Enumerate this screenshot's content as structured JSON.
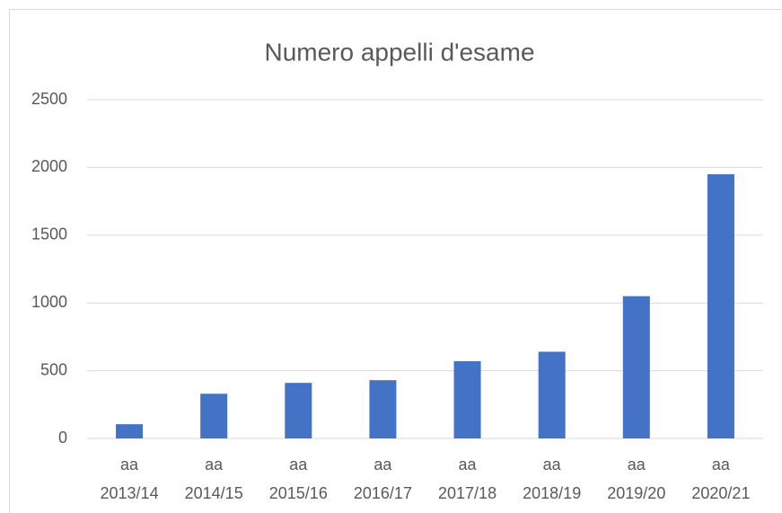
{
  "chart_data": {
    "type": "bar",
    "title": "Numero appelli d'esame",
    "categories": [
      "aa 2013/14",
      "aa 2014/15",
      "aa 2015/16",
      "aa 2016/17",
      "aa 2017/18",
      "aa 2018/19",
      "aa 2019/20",
      "aa 2020/21"
    ],
    "values": [
      105,
      330,
      410,
      430,
      570,
      640,
      1050,
      1950
    ],
    "color": "#4472c4",
    "ylim": [
      0,
      2500
    ],
    "yticks": [
      0,
      500,
      1000,
      1500,
      2000,
      2500
    ],
    "grid": true
  }
}
